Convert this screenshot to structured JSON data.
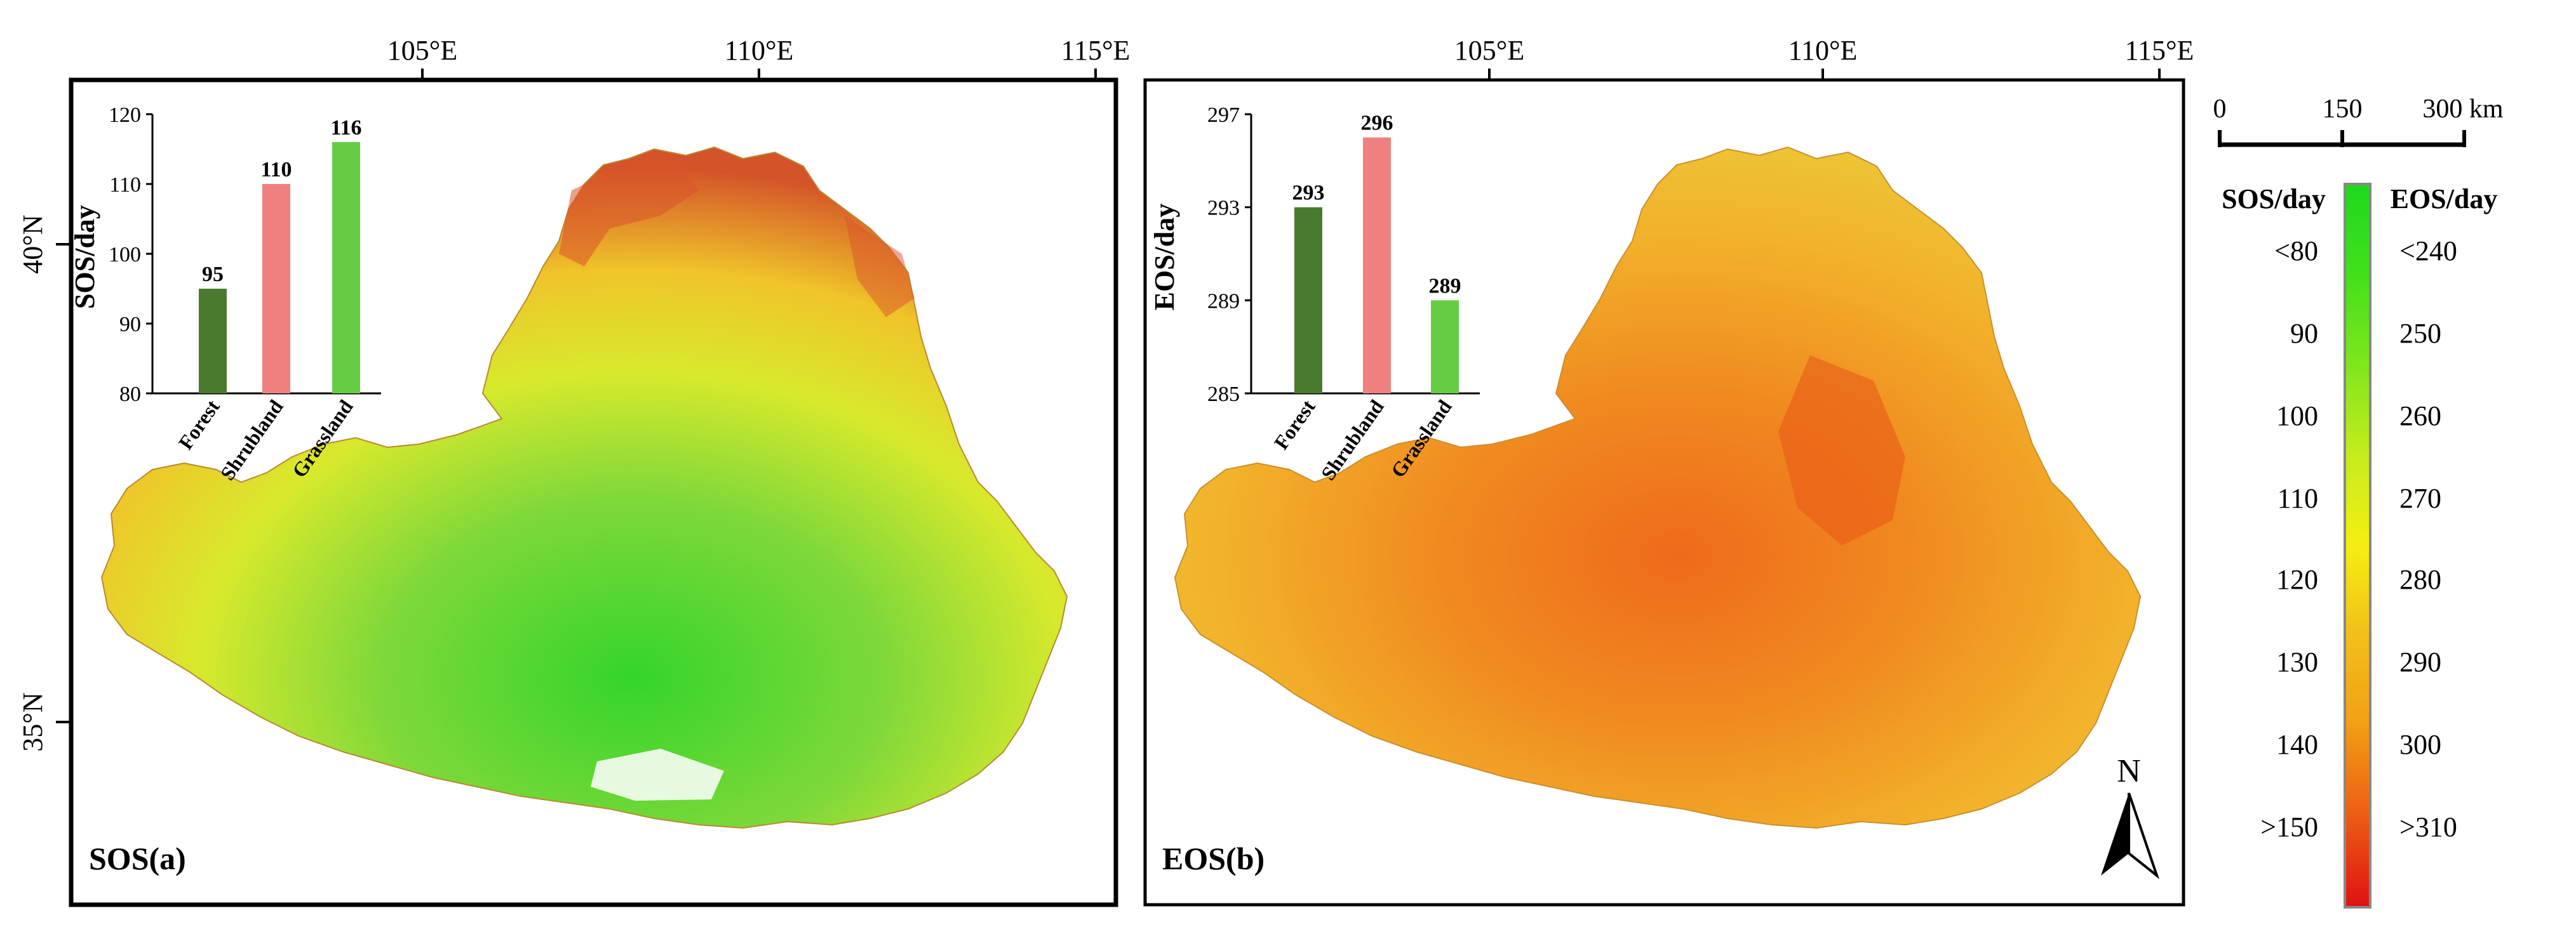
{
  "colors": {
    "forest": "#4a7a2e",
    "shrubland": "#f08080",
    "grassland": "#66cc44",
    "frame": "#000000",
    "legend": [
      "#1ed81e",
      "#3fe01a",
      "#7fe61c",
      "#c8ec1c",
      "#f5ef10",
      "#f2c01a",
      "#f2a214",
      "#ee6414",
      "#e01212"
    ]
  },
  "map_top_ticks": [
    "105°E",
    "110°E",
    "115°E"
  ],
  "map_top_ticks_b": [
    "105°E",
    "110°E",
    "115°E"
  ],
  "map_side_ticks": [
    "40°N",
    "35°N"
  ],
  "panels": {
    "a": {
      "label": "SOS(a)",
      "map_style": "sos"
    },
    "b": {
      "label": "EOS(b)",
      "map_style": "eos"
    }
  },
  "north_arrow": {
    "label": "N"
  },
  "scale_bar": {
    "ticks": [
      "0",
      "150",
      "300 km"
    ]
  },
  "legend": {
    "sos_title": "SOS/day",
    "eos_title": "EOS/day",
    "sos_labels": [
      "<80",
      "90",
      "100",
      "110",
      "120",
      "130",
      "140",
      ">150"
    ],
    "eos_labels": [
      "<240",
      "250",
      "260",
      "270",
      "280",
      "290",
      "300",
      ">310"
    ]
  },
  "chart_data": [
    {
      "type": "bar",
      "categories": [
        "Forest",
        "Shrubland",
        "Grassland"
      ],
      "values": [
        95,
        110,
        116
      ],
      "data_labels": [
        "95",
        "110",
        "116"
      ],
      "ylabel": "SOS/day",
      "ylim": [
        80,
        120
      ],
      "yticks": [
        "80",
        "90",
        "100",
        "110",
        "120"
      ]
    },
    {
      "type": "bar",
      "categories": [
        "Forest",
        "Shrubland",
        "Grassland"
      ],
      "values": [
        293,
        296,
        289
      ],
      "data_labels": [
        "293",
        "296",
        "289"
      ],
      "ylabel": "EOS/day",
      "ylim": [
        285,
        297
      ],
      "yticks": [
        "285",
        "289",
        "293",
        "297"
      ]
    }
  ]
}
